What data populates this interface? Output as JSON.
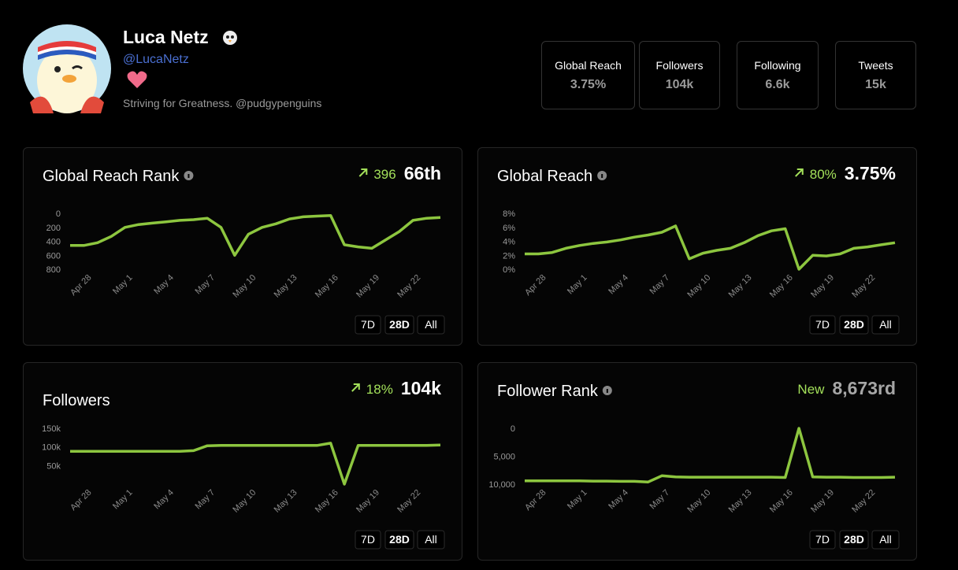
{
  "profile": {
    "name": "Luca Netz",
    "handle": "@LucaNetz",
    "bio": "Striving for Greatness. @pudgypenguins"
  },
  "stats": [
    {
      "label": "Global Reach",
      "value": "3.75%"
    },
    {
      "label": "Followers",
      "value": "104k"
    },
    {
      "label": "Following",
      "value": "6.6k"
    },
    {
      "label": "Tweets",
      "value": "15k"
    }
  ],
  "ranges": [
    "7D",
    "28D",
    "All"
  ],
  "chart_data": [
    {
      "type": "line",
      "title": "Global Reach Rank",
      "info_icon": true,
      "arrow": true,
      "change": "396",
      "current": "66th",
      "current_color": "#ffffff",
      "color": "#8dc63f",
      "categories": [
        null,
        "Apr 28",
        null,
        null,
        "May 1",
        null,
        null,
        "May 4",
        null,
        null,
        "May 7",
        null,
        null,
        "May 10",
        null,
        null,
        "May 13",
        null,
        null,
        "May 16",
        null,
        null,
        "May 19",
        null,
        null,
        "May 22",
        null,
        null
      ],
      "values": [
        460,
        460,
        420,
        330,
        200,
        160,
        140,
        120,
        100,
        90,
        70,
        200,
        600,
        300,
        200,
        150,
        80,
        50,
        40,
        30,
        450,
        480,
        500,
        380,
        260,
        100,
        70,
        60
      ],
      "ylim": [
        800,
        0
      ],
      "yticks": [
        0,
        200,
        400,
        600,
        800
      ]
    },
    {
      "type": "line",
      "title": "Global Reach",
      "info_icon": true,
      "arrow": true,
      "change": "80%",
      "current": "3.75%",
      "current_color": "#ffffff",
      "color": "#8dc63f",
      "categories": [
        null,
        "Apr 28",
        null,
        null,
        "May 1",
        null,
        null,
        "May 4",
        null,
        null,
        "May 7",
        null,
        null,
        "May 10",
        null,
        null,
        "May 13",
        null,
        null,
        "May 16",
        null,
        null,
        "May 19",
        null,
        null,
        "May 22",
        null,
        null
      ],
      "values": [
        2.2,
        2.2,
        2.4,
        3,
        3.4,
        3.7,
        3.9,
        4.2,
        4.6,
        4.9,
        5.3,
        6.2,
        1.5,
        2.3,
        2.7,
        3,
        3.8,
        4.8,
        5.5,
        5.8,
        0,
        2,
        1.9,
        2.2,
        3,
        3.2,
        3.5,
        3.8
      ],
      "ylim": [
        0,
        8
      ],
      "yticks": [
        {
          "value": 8,
          "label": "8%"
        },
        {
          "value": 6,
          "label": "6%"
        },
        {
          "value": 4,
          "label": "4%"
        },
        {
          "value": 2,
          "label": "2%"
        },
        {
          "value": 0,
          "label": "0%"
        }
      ]
    },
    {
      "type": "line",
      "title": "Followers",
      "info_icon": false,
      "arrow": true,
      "change": "18%",
      "current": "104k",
      "current_color": "#ffffff",
      "color": "#8dc63f",
      "categories": [
        null,
        "Apr 28",
        null,
        null,
        "May 1",
        null,
        null,
        "May 4",
        null,
        null,
        "May 7",
        null,
        null,
        "May 10",
        null,
        null,
        "May 13",
        null,
        null,
        "May 16",
        null,
        null,
        "May 19",
        null,
        null,
        "May 22",
        null,
        null
      ],
      "values": [
        88000,
        88000,
        88000,
        88000,
        88000,
        88000,
        88000,
        88000,
        88000,
        90000,
        103000,
        104000,
        104000,
        104000,
        104000,
        104000,
        104000,
        104000,
        104000,
        110000,
        0,
        104000,
        104000,
        104000,
        104000,
        104000,
        104000,
        105000
      ],
      "ylim": [
        0,
        150000
      ],
      "yticks": [
        {
          "value": 150000,
          "label": "150k"
        },
        {
          "value": 100000,
          "label": "100k"
        },
        {
          "value": 50000,
          "label": "50k"
        }
      ]
    },
    {
      "type": "line",
      "title": "Follower Rank",
      "info_icon": true,
      "arrow": false,
      "change": "New",
      "current": "8,673rd",
      "current_color": "#a6a6a6",
      "color": "#8dc63f",
      "categories": [
        null,
        "Apr 28",
        null,
        null,
        "May 1",
        null,
        null,
        "May 4",
        null,
        null,
        "May 7",
        null,
        null,
        "May 10",
        null,
        null,
        "May 13",
        null,
        null,
        "May 16",
        null,
        null,
        "May 19",
        null,
        null,
        "May 22",
        null,
        null
      ],
      "values": [
        9400,
        9400,
        9400,
        9400,
        9400,
        9450,
        9450,
        9500,
        9500,
        9600,
        8500,
        8700,
        8750,
        8750,
        8750,
        8750,
        8750,
        8750,
        8750,
        8800,
        0,
        8700,
        8750,
        8750,
        8800,
        8800,
        8800,
        8750
      ],
      "ylim": [
        10000,
        0
      ],
      "yticks": [
        0,
        {
          "value": 5000,
          "label": "5,000"
        },
        {
          "value": 10000,
          "label": "10,000"
        }
      ]
    }
  ]
}
